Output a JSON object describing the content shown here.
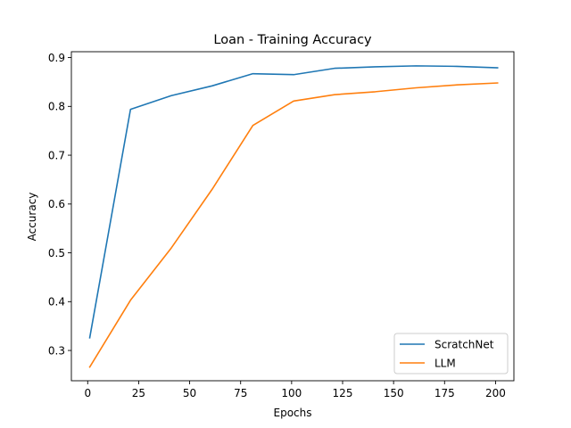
{
  "chart_data": {
    "type": "line",
    "title": "Loan - Training Accuracy",
    "xlabel": "Epochs",
    "ylabel": "Accuracy",
    "xlim": [
      -8,
      209
    ],
    "ylim": [
      0.238,
      0.912
    ],
    "xticks": [
      0,
      25,
      50,
      75,
      100,
      125,
      150,
      175,
      200
    ],
    "yticks": [
      0.3,
      0.4,
      0.5,
      0.6,
      0.7,
      0.8,
      0.9
    ],
    "grid": false,
    "legend_position": "lower-right",
    "series": [
      {
        "name": "ScratchNet",
        "color": "#1f77b4",
        "x": [
          1,
          21,
          41,
          61,
          81,
          101,
          121,
          141,
          161,
          181,
          201
        ],
        "y": [
          0.326,
          0.794,
          0.822,
          0.842,
          0.867,
          0.865,
          0.878,
          0.881,
          0.883,
          0.882,
          0.879
        ]
      },
      {
        "name": "LLM",
        "color": "#ff7f0e",
        "x": [
          1,
          21,
          41,
          61,
          81,
          101,
          121,
          141,
          161,
          181,
          201
        ],
        "y": [
          0.266,
          0.403,
          0.51,
          0.63,
          0.761,
          0.811,
          0.824,
          0.83,
          0.838,
          0.844,
          0.848
        ]
      }
    ]
  }
}
